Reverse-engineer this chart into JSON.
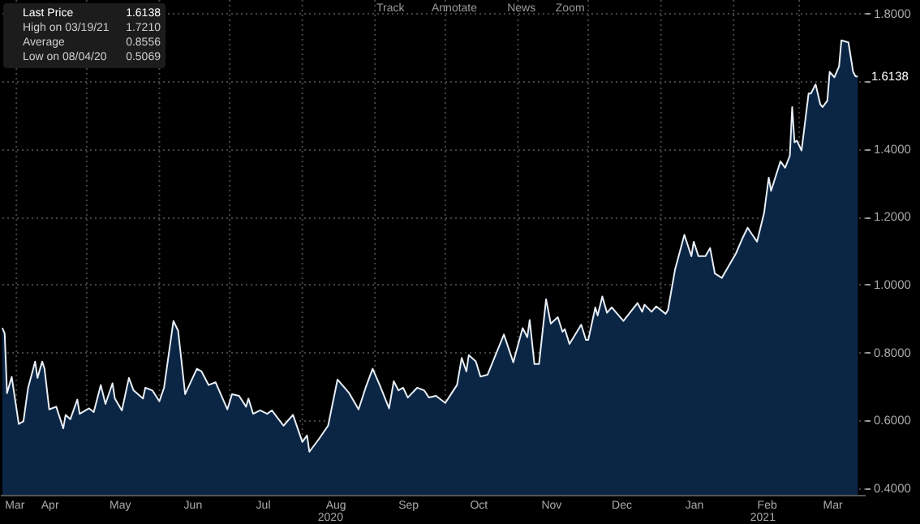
{
  "chart_data": {
    "type": "area",
    "x": [
      "2020-03-26",
      "2020-03-27",
      "2020-03-28",
      "2020-03-30",
      "2020-04-02",
      "2020-04-04",
      "2020-04-06",
      "2020-04-09",
      "2020-04-10",
      "2020-04-12",
      "2020-04-13",
      "2020-04-15",
      "2020-04-18",
      "2020-04-21",
      "2020-04-22",
      "2020-04-24",
      "2020-04-27",
      "2020-04-28",
      "2020-05-02",
      "2020-05-04",
      "2020-05-07",
      "2020-05-09",
      "2020-05-12",
      "2020-05-13",
      "2020-05-16",
      "2020-05-19",
      "2020-05-21",
      "2020-05-25",
      "2020-05-26",
      "2020-05-29",
      "2020-06-01",
      "2020-06-03",
      "2020-06-07",
      "2020-06-09",
      "2020-06-12",
      "2020-06-17",
      "2020-06-19",
      "2020-06-22",
      "2020-06-25",
      "2020-06-30",
      "2020-07-02",
      "2020-07-05",
      "2020-07-08",
      "2020-07-09",
      "2020-07-11",
      "2020-07-14",
      "2020-07-17",
      "2020-07-19",
      "2020-07-24",
      "2020-07-28",
      "2020-08-01",
      "2020-08-03",
      "2020-08-04",
      "2020-08-08",
      "2020-08-12",
      "2020-08-16",
      "2020-08-21",
      "2020-08-25",
      "2020-08-28",
      "2020-08-31",
      "2020-09-03",
      "2020-09-07",
      "2020-09-09",
      "2020-09-11",
      "2020-09-13",
      "2020-09-15",
      "2020-09-19",
      "2020-09-22",
      "2020-09-24",
      "2020-09-27",
      "2020-10-01",
      "2020-10-04",
      "2020-10-06",
      "2020-10-08",
      "2020-10-10",
      "2020-10-11",
      "2020-10-14",
      "2020-10-16",
      "2020-10-19",
      "2020-10-26",
      "2020-10-30",
      "2020-11-03",
      "2020-11-05",
      "2020-11-06",
      "2020-11-08",
      "2020-11-10",
      "2020-11-13",
      "2020-11-15",
      "2020-11-18",
      "2020-11-20",
      "2020-11-21",
      "2020-11-23",
      "2020-11-28",
      "2020-11-30",
      "2020-12-01",
      "2020-12-04",
      "2020-12-05",
      "2020-12-07",
      "2020-12-09",
      "2020-12-11",
      "2020-12-16",
      "2020-12-22",
      "2020-12-24",
      "2020-12-25",
      "2020-12-28",
      "2020-12-30",
      "2021-01-03",
      "2021-01-04",
      "2021-01-07",
      "2021-01-11",
      "2021-01-14",
      "2021-01-15",
      "2021-01-17",
      "2021-01-20",
      "2021-01-22",
      "2021-01-24",
      "2021-01-27",
      "2021-01-31",
      "2021-02-02",
      "2021-02-05",
      "2021-02-07",
      "2021-02-09",
      "2021-02-11",
      "2021-02-14",
      "2021-02-16",
      "2021-02-17",
      "2021-02-21",
      "2021-02-23",
      "2021-02-25",
      "2021-02-26",
      "2021-02-27",
      "2021-02-28",
      "2021-03-02",
      "2021-03-05",
      "2021-03-06",
      "2021-03-08",
      "2021-03-10",
      "2021-03-11",
      "2021-03-13",
      "2021-03-14",
      "2021-03-16",
      "2021-03-18",
      "2021-03-19",
      "2021-03-22",
      "2021-03-24",
      "2021-03-25",
      "2021-03-26"
    ],
    "series": [
      {
        "name": "Last Price",
        "color": "#0b2645",
        "values": [
          0.872,
          0.856,
          0.68,
          0.728,
          0.589,
          0.597,
          0.696,
          0.773,
          0.725,
          0.773,
          0.752,
          0.632,
          0.64,
          0.576,
          0.616,
          0.603,
          0.661,
          0.619,
          0.635,
          0.624,
          0.704,
          0.648,
          0.709,
          0.664,
          0.629,
          0.725,
          0.688,
          0.664,
          0.696,
          0.688,
          0.656,
          0.696,
          0.893,
          0.864,
          0.677,
          0.752,
          0.744,
          0.704,
          0.712,
          0.632,
          0.677,
          0.672,
          0.64,
          0.664,
          0.619,
          0.629,
          0.619,
          0.629,
          0.584,
          0.616,
          0.536,
          0.555,
          0.5069,
          0.544,
          0.584,
          0.72,
          0.68,
          0.632,
          0.696,
          0.752,
          0.704,
          0.635,
          0.715,
          0.688,
          0.696,
          0.667,
          0.696,
          0.688,
          0.667,
          0.672,
          0.651,
          0.683,
          0.704,
          0.784,
          0.744,
          0.792,
          0.774,
          0.729,
          0.734,
          0.853,
          0.771,
          0.872,
          0.845,
          0.896,
          0.766,
          0.766,
          0.957,
          0.885,
          0.904,
          0.861,
          0.869,
          0.825,
          0.882,
          0.837,
          0.837,
          0.933,
          0.909,
          0.965,
          0.917,
          0.933,
          0.893,
          0.946,
          0.92,
          0.941,
          0.92,
          0.936,
          0.914,
          0.925,
          1.044,
          1.147,
          1.084,
          1.127,
          1.084,
          1.084,
          1.108,
          1.033,
          1.02,
          1.068,
          1.092,
          1.14,
          1.168,
          1.147,
          1.127,
          1.211,
          1.316,
          1.277,
          1.364,
          1.345,
          1.38,
          1.524,
          1.42,
          1.425,
          1.396,
          1.564,
          1.564,
          1.591,
          1.532,
          1.524,
          1.543,
          1.628,
          1.612,
          1.644,
          1.721,
          1.715,
          1.628,
          1.615,
          1.6138
        ]
      }
    ],
    "xlim": [
      "2020-03-25",
      "2021-03-29"
    ],
    "xticks": [
      {
        "value": "2020-03-31",
        "label": "Mar"
      },
      {
        "value": "2020-04-01",
        "label": null
      },
      {
        "value": "2020-04-15",
        "label": "Apr"
      },
      {
        "value": "2020-05-01",
        "label": null
      },
      {
        "value": "2020-05-15",
        "label": "May"
      },
      {
        "value": "2020-06-01",
        "label": null
      },
      {
        "value": "2020-06-15",
        "label": "Jun"
      },
      {
        "value": "2020-07-01",
        "label": null
      },
      {
        "value": "2020-07-15",
        "label": "Jul"
      },
      {
        "value": "2020-08-01",
        "label": null
      },
      {
        "value": "2020-08-15",
        "label": "Aug"
      },
      {
        "value": "2020-09-01",
        "label": null
      },
      {
        "value": "2020-09-15",
        "label": "Sep"
      },
      {
        "value": "2020-10-01",
        "label": null
      },
      {
        "value": "2020-10-15",
        "label": "Oct"
      },
      {
        "value": "2020-11-01",
        "label": null
      },
      {
        "value": "2020-11-15",
        "label": "Nov"
      },
      {
        "value": "2020-12-01",
        "label": null
      },
      {
        "value": "2020-12-15",
        "label": "Dec"
      },
      {
        "value": "2021-01-01",
        "label": null
      },
      {
        "value": "2021-01-15",
        "label": "Jan"
      },
      {
        "value": "2021-02-01",
        "label": null
      },
      {
        "value": "2021-02-15",
        "label": "Feb"
      },
      {
        "value": "2021-03-01",
        "label": null
      },
      {
        "value": "2021-03-15",
        "label": "Mar"
      }
    ],
    "ylim": [
      0.38,
      1.84
    ],
    "yticks": [
      {
        "value": 0.4,
        "label": "0.4000"
      },
      {
        "value": 0.6,
        "label": "0.6000"
      },
      {
        "value": 0.8,
        "label": "0.8000"
      },
      {
        "value": 1.0,
        "label": "1.0000"
      },
      {
        "value": 1.2,
        "label": "1.2000"
      },
      {
        "value": 1.4,
        "label": "1.4000"
      },
      {
        "value": 1.6,
        "label": null
      },
      {
        "value": 1.8,
        "label": "1.8000"
      }
    ],
    "grid": true,
    "legend": "top left",
    "annotations": [
      {
        "text": "1.6138",
        "x": "2021-03-26",
        "y": 1.6138
      },
      "1.6138",
      "High on 03/19/21",
      "1.7210",
      "Average",
      "0.8556",
      "Low on 08/04/20",
      "0.5069",
      "Track",
      "Annotate",
      "News",
      "Zoom",
      "2020",
      "2021"
    ]
  }
}
